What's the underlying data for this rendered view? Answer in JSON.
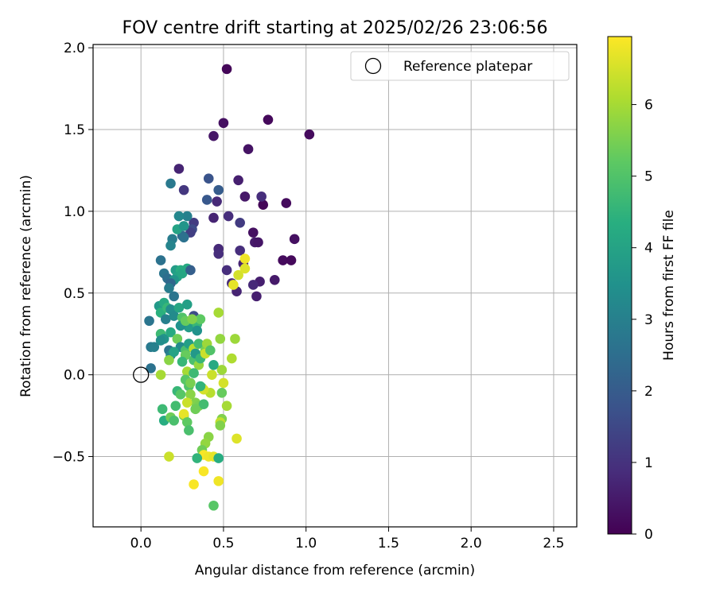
{
  "chart_data": {
    "type": "scatter",
    "title": "FOV centre drift starting at 2025/02/26 23:06:56",
    "xlabel": "Angular distance from reference (arcmin)",
    "ylabel": "Rotation from reference (arcmin)",
    "xlim": [
      -0.29,
      2.64
    ],
    "ylim": [
      -0.93,
      2.02
    ],
    "xticks": [
      "0.0",
      "0.5",
      "1.0",
      "1.5",
      "2.0",
      "2.5"
    ],
    "xtick_values": [
      0,
      0.5,
      1.0,
      1.5,
      2.0,
      2.5
    ],
    "yticks": [
      "−0.5",
      "0.0",
      "0.5",
      "1.0",
      "1.5",
      "2.0"
    ],
    "ytick_values": [
      -0.5,
      0,
      0.5,
      1.0,
      1.5,
      2.0
    ],
    "grid": true,
    "legend": {
      "label": "Reference platepar",
      "placement": "upper-right"
    },
    "reference_point": {
      "x": 0,
      "y": 0
    },
    "colorbar": {
      "label": "Hours from first FF file",
      "colormap": "viridis",
      "range": [
        0,
        6.95
      ],
      "ticks": [
        "0",
        "1",
        "2",
        "3",
        "4",
        "5",
        "6"
      ],
      "tick_values": [
        0,
        1,
        2,
        3,
        4,
        5,
        6
      ]
    },
    "series": [
      {
        "points": [
          {
            "x": 0.52,
            "y": 1.87,
            "h": 0.1
          },
          {
            "x": 0.77,
            "y": 1.56,
            "h": 0.15
          },
          {
            "x": 1.02,
            "y": 1.47,
            "h": 0.2
          },
          {
            "x": 0.5,
            "y": 1.54,
            "h": 0.3
          },
          {
            "x": 0.44,
            "y": 1.46,
            "h": 0.4
          },
          {
            "x": 0.65,
            "y": 1.38,
            "h": 0.35
          },
          {
            "x": 0.59,
            "y": 1.19,
            "h": 0.6
          },
          {
            "x": 0.63,
            "y": 1.09,
            "h": 0.45
          },
          {
            "x": 0.74,
            "y": 1.04,
            "h": 0.1
          },
          {
            "x": 0.88,
            "y": 1.05,
            "h": 0.2
          },
          {
            "x": 0.73,
            "y": 1.09,
            "h": 0.9
          },
          {
            "x": 0.46,
            "y": 1.06,
            "h": 0.8
          },
          {
            "x": 0.53,
            "y": 0.97,
            "h": 0.9
          },
          {
            "x": 0.44,
            "y": 0.96,
            "h": 0.7
          },
          {
            "x": 0.6,
            "y": 0.93,
            "h": 1.2
          },
          {
            "x": 0.68,
            "y": 0.87,
            "h": 0.3
          },
          {
            "x": 0.69,
            "y": 0.81,
            "h": 0.5
          },
          {
            "x": 0.71,
            "y": 0.81,
            "h": 0.4
          },
          {
            "x": 0.93,
            "y": 0.83,
            "h": 0.3
          },
          {
            "x": 0.6,
            "y": 0.76,
            "h": 0.9
          },
          {
            "x": 0.47,
            "y": 0.77,
            "h": 0.8
          },
          {
            "x": 0.47,
            "y": 0.74,
            "h": 0.9
          },
          {
            "x": 0.86,
            "y": 0.7,
            "h": 0.2
          },
          {
            "x": 0.91,
            "y": 0.7,
            "h": 0.15
          },
          {
            "x": 0.62,
            "y": 0.68,
            "h": 0.7
          },
          {
            "x": 0.52,
            "y": 0.64,
            "h": 0.9
          },
          {
            "x": 0.72,
            "y": 0.57,
            "h": 0.6
          },
          {
            "x": 0.55,
            "y": 0.56,
            "h": 0.8
          },
          {
            "x": 0.58,
            "y": 0.51,
            "h": 0.7
          },
          {
            "x": 0.68,
            "y": 0.55,
            "h": 0.8
          },
          {
            "x": 0.7,
            "y": 0.48,
            "h": 0.6
          },
          {
            "x": 0.81,
            "y": 0.58,
            "h": 0.5
          },
          {
            "x": 0.47,
            "y": 1.13,
            "h": 2.0
          },
          {
            "x": 0.41,
            "y": 1.2,
            "h": 1.8
          },
          {
            "x": 0.4,
            "y": 1.07,
            "h": 1.9
          },
          {
            "x": 0.23,
            "y": 1.26,
            "h": 0.7
          },
          {
            "x": 0.26,
            "y": 1.13,
            "h": 1.1
          },
          {
            "x": 0.18,
            "y": 1.17,
            "h": 2.8
          },
          {
            "x": 0.32,
            "y": 0.93,
            "h": 1.2
          },
          {
            "x": 0.31,
            "y": 0.89,
            "h": 1.6
          },
          {
            "x": 0.3,
            "y": 0.87,
            "h": 1.3
          },
          {
            "x": 0.25,
            "y": 0.85,
            "h": 2.4
          },
          {
            "x": 0.26,
            "y": 0.84,
            "h": 2.6
          },
          {
            "x": 0.28,
            "y": 0.97,
            "h": 3.0
          },
          {
            "x": 0.23,
            "y": 0.97,
            "h": 3.2
          },
          {
            "x": 0.22,
            "y": 0.89,
            "h": 4.0
          },
          {
            "x": 0.26,
            "y": 0.91,
            "h": 3.6
          },
          {
            "x": 0.19,
            "y": 0.83,
            "h": 2.9
          },
          {
            "x": 0.18,
            "y": 0.79,
            "h": 3.1
          },
          {
            "x": 0.12,
            "y": 0.7,
            "h": 2.6
          },
          {
            "x": 0.14,
            "y": 0.62,
            "h": 2.7
          },
          {
            "x": 0.16,
            "y": 0.59,
            "h": 2.5
          },
          {
            "x": 0.21,
            "y": 0.64,
            "h": 3.8
          },
          {
            "x": 0.24,
            "y": 0.64,
            "h": 4.3
          },
          {
            "x": 0.22,
            "y": 0.6,
            "h": 4.0
          },
          {
            "x": 0.2,
            "y": 0.58,
            "h": 3.6
          },
          {
            "x": 0.25,
            "y": 0.62,
            "h": 4.1
          },
          {
            "x": 0.28,
            "y": 0.65,
            "h": 4.2
          },
          {
            "x": 0.3,
            "y": 0.64,
            "h": 2.1
          },
          {
            "x": 0.18,
            "y": 0.56,
            "h": 2.3
          },
          {
            "x": 0.2,
            "y": 0.48,
            "h": 2.7
          },
          {
            "x": 0.17,
            "y": 0.53,
            "h": 2.9
          },
          {
            "x": 0.11,
            "y": 0.42,
            "h": 3.7
          },
          {
            "x": 0.14,
            "y": 0.44,
            "h": 4.2
          },
          {
            "x": 0.12,
            "y": 0.38,
            "h": 4.4
          },
          {
            "x": 0.16,
            "y": 0.41,
            "h": 4.6
          },
          {
            "x": 0.18,
            "y": 0.4,
            "h": 3.4
          },
          {
            "x": 0.15,
            "y": 0.34,
            "h": 3.0
          },
          {
            "x": 0.2,
            "y": 0.36,
            "h": 3.3
          },
          {
            "x": 0.23,
            "y": 0.41,
            "h": 4.1
          },
          {
            "x": 0.28,
            "y": 0.43,
            "h": 3.9
          },
          {
            "x": 0.25,
            "y": 0.35,
            "h": 5.0
          },
          {
            "x": 0.27,
            "y": 0.31,
            "h": 4.2
          },
          {
            "x": 0.29,
            "y": 0.29,
            "h": 3.8
          },
          {
            "x": 0.32,
            "y": 0.36,
            "h": 1.6
          },
          {
            "x": 0.34,
            "y": 0.31,
            "h": 4.6
          },
          {
            "x": 0.36,
            "y": 0.34,
            "h": 5.2
          },
          {
            "x": 0.34,
            "y": 0.27,
            "h": 3.5
          },
          {
            "x": 0.05,
            "y": 0.33,
            "h": 2.7
          },
          {
            "x": 0.12,
            "y": 0.25,
            "h": 4.7
          },
          {
            "x": 0.14,
            "y": 0.22,
            "h": 3.6
          },
          {
            "x": 0.18,
            "y": 0.26,
            "h": 4.2
          },
          {
            "x": 0.06,
            "y": 0.17,
            "h": 2.8
          },
          {
            "x": 0.08,
            "y": 0.17,
            "h": 3.0
          },
          {
            "x": 0.12,
            "y": 0.21,
            "h": 3.4
          },
          {
            "x": 0.17,
            "y": 0.15,
            "h": 2.7
          },
          {
            "x": 0.18,
            "y": 0.12,
            "h": 3.1
          },
          {
            "x": 0.22,
            "y": 0.22,
            "h": 5.4
          },
          {
            "x": 0.24,
            "y": 0.17,
            "h": 3.3
          },
          {
            "x": 0.27,
            "y": 0.15,
            "h": 4.9
          },
          {
            "x": 0.29,
            "y": 0.19,
            "h": 3.9
          },
          {
            "x": 0.32,
            "y": 0.16,
            "h": 6.2
          },
          {
            "x": 0.35,
            "y": 0.19,
            "h": 4.8
          },
          {
            "x": 0.39,
            "y": 0.15,
            "h": 5.5
          },
          {
            "x": 0.37,
            "y": 0.12,
            "h": 6.0
          },
          {
            "x": 0.4,
            "y": 0.19,
            "h": 5.9
          },
          {
            "x": 0.48,
            "y": 0.22,
            "h": 5.8
          },
          {
            "x": 0.47,
            "y": 0.38,
            "h": 6.0
          },
          {
            "x": 0.57,
            "y": 0.22,
            "h": 5.9
          },
          {
            "x": 0.55,
            "y": 0.1,
            "h": 6.1
          },
          {
            "x": 0.27,
            "y": 0.12,
            "h": 5.3
          },
          {
            "x": 0.25,
            "y": 0.08,
            "h": 4.6
          },
          {
            "x": 0.32,
            "y": 0.09,
            "h": 4.9
          },
          {
            "x": 0.35,
            "y": 0.06,
            "h": 5.8
          },
          {
            "x": 0.28,
            "y": 0.02,
            "h": 6.0
          },
          {
            "x": 0.32,
            "y": 0.01,
            "h": 4.7
          },
          {
            "x": 0.27,
            "y": -0.03,
            "h": 5.1
          },
          {
            "x": 0.17,
            "y": 0.09,
            "h": 5.7
          },
          {
            "x": 0.12,
            "y": 0.0,
            "h": 6.0
          },
          {
            "x": 0.06,
            "y": 0.04,
            "h": 2.6
          },
          {
            "x": 0.43,
            "y": 0.0,
            "h": 6.4
          },
          {
            "x": 0.49,
            "y": 0.03,
            "h": 5.9
          },
          {
            "x": 0.5,
            "y": -0.05,
            "h": 6.5
          },
          {
            "x": 0.49,
            "y": -0.11,
            "h": 5.3
          },
          {
            "x": 0.37,
            "y": -0.08,
            "h": 4.9
          },
          {
            "x": 0.42,
            "y": -0.11,
            "h": 6.2
          },
          {
            "x": 0.38,
            "y": -0.09,
            "h": 6.5
          },
          {
            "x": 0.29,
            "y": -0.07,
            "h": 5.0
          },
          {
            "x": 0.3,
            "y": -0.12,
            "h": 5.7
          },
          {
            "x": 0.22,
            "y": -0.1,
            "h": 4.6
          },
          {
            "x": 0.24,
            "y": -0.12,
            "h": 5.1
          },
          {
            "x": 0.33,
            "y": -0.17,
            "h": 5.6
          },
          {
            "x": 0.35,
            "y": -0.19,
            "h": 5.5
          },
          {
            "x": 0.38,
            "y": -0.18,
            "h": 4.8
          },
          {
            "x": 0.28,
            "y": -0.17,
            "h": 6.4
          },
          {
            "x": 0.13,
            "y": -0.21,
            "h": 4.7
          },
          {
            "x": 0.21,
            "y": -0.19,
            "h": 4.8
          },
          {
            "x": 0.33,
            "y": -0.21,
            "h": 5.4
          },
          {
            "x": 0.26,
            "y": -0.25,
            "h": 5.6
          },
          {
            "x": 0.26,
            "y": -0.24,
            "h": 6.7
          },
          {
            "x": 0.14,
            "y": -0.28,
            "h": 4.3
          },
          {
            "x": 0.18,
            "y": -0.26,
            "h": 5.4
          },
          {
            "x": 0.2,
            "y": -0.28,
            "h": 4.9
          },
          {
            "x": 0.28,
            "y": -0.29,
            "h": 5.2
          },
          {
            "x": 0.29,
            "y": -0.34,
            "h": 4.9
          },
          {
            "x": 0.49,
            "y": -0.27,
            "h": 5.6
          },
          {
            "x": 0.52,
            "y": -0.19,
            "h": 6.0
          },
          {
            "x": 0.48,
            "y": -0.29,
            "h": 6.3
          },
          {
            "x": 0.48,
            "y": -0.31,
            "h": 5.6
          },
          {
            "x": 0.41,
            "y": -0.38,
            "h": 5.7
          },
          {
            "x": 0.39,
            "y": -0.42,
            "h": 5.8
          },
          {
            "x": 0.37,
            "y": -0.46,
            "h": 5.4
          },
          {
            "x": 0.58,
            "y": -0.39,
            "h": 6.6
          },
          {
            "x": 0.38,
            "y": -0.49,
            "h": 6.9
          },
          {
            "x": 0.41,
            "y": -0.5,
            "h": 6.8
          },
          {
            "x": 0.44,
            "y": -0.5,
            "h": 6.7
          },
          {
            "x": 0.47,
            "y": -0.51,
            "h": 4.3
          },
          {
            "x": 0.34,
            "y": -0.51,
            "h": 4.5
          },
          {
            "x": 0.17,
            "y": -0.5,
            "h": 6.4
          },
          {
            "x": 0.38,
            "y": -0.59,
            "h": 6.9
          },
          {
            "x": 0.32,
            "y": -0.67,
            "h": 6.9
          },
          {
            "x": 0.47,
            "y": -0.65,
            "h": 6.8
          },
          {
            "x": 0.44,
            "y": -0.8,
            "h": 5.1
          },
          {
            "x": 0.59,
            "y": 0.61,
            "h": 6.5
          },
          {
            "x": 0.63,
            "y": 0.65,
            "h": 6.6
          },
          {
            "x": 0.63,
            "y": 0.71,
            "h": 6.8
          },
          {
            "x": 0.56,
            "y": 0.55,
            "h": 6.7
          },
          {
            "x": 0.36,
            "y": -0.07,
            "h": 4.5
          },
          {
            "x": 0.44,
            "y": 0.06,
            "h": 4.2
          },
          {
            "x": 0.24,
            "y": 0.3,
            "h": 3.5
          },
          {
            "x": 0.27,
            "y": 0.33,
            "h": 5.3
          },
          {
            "x": 0.31,
            "y": 0.34,
            "h": 5.6
          },
          {
            "x": 0.2,
            "y": 0.14,
            "h": 4.0
          },
          {
            "x": 0.33,
            "y": 0.13,
            "h": 3.7
          },
          {
            "x": 0.36,
            "y": 0.1,
            "h": 4.6
          },
          {
            "x": 0.3,
            "y": -0.05,
            "h": 5.5
          },
          {
            "x": 0.39,
            "y": 0.13,
            "h": 6.4
          },
          {
            "x": 0.42,
            "y": 0.15,
            "h": 5.0
          }
        ]
      }
    ]
  }
}
